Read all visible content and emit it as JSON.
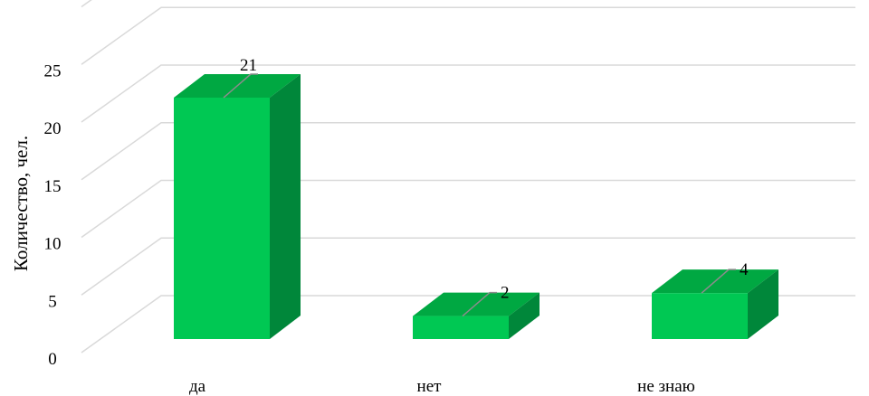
{
  "chart_data": {
    "type": "bar",
    "style": "3d-column",
    "categories": [
      "да",
      "нет",
      "не знаю"
    ],
    "values": [
      21,
      2,
      4
    ],
    "data_labels": [
      "21",
      "2",
      "4"
    ],
    "title": "",
    "xlabel": "",
    "ylabel": "Количество, чел.",
    "ylim": [
      0,
      25
    ],
    "yticks": [
      "0",
      "5",
      "10",
      "15",
      "20",
      "25"
    ],
    "grid": true,
    "legend": "none",
    "colors": {
      "bar_front": "#00C853",
      "bar_top": "#00A842",
      "bar_side": "#00873A",
      "grid": "#D9D9D9",
      "leader": "#8C8C8C"
    }
  }
}
